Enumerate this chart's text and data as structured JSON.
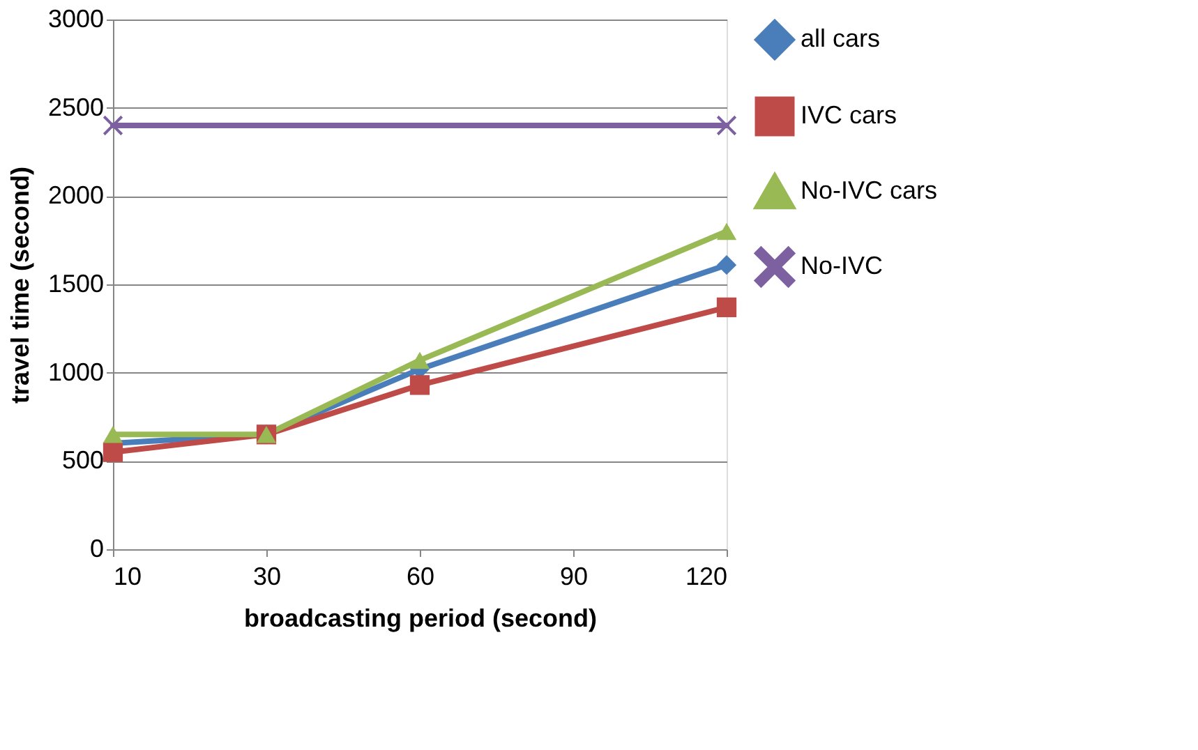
{
  "chart_data": {
    "type": "line",
    "xlabel": "broadcasting period (second)",
    "ylabel": "travel time (second)",
    "categories": [
      "10",
      "30",
      "60",
      "90",
      "120"
    ],
    "series": [
      {
        "name": "all cars",
        "color": "#4a7ebb",
        "marker": "diamond",
        "values": [
          600,
          650,
          1020,
          null,
          1610
        ]
      },
      {
        "name": "IVC cars",
        "color": "#be4b48",
        "marker": "square",
        "values": [
          550,
          650,
          930,
          null,
          1370
        ]
      },
      {
        "name": "No-IVC cars",
        "color": "#98b954",
        "marker": "triangle",
        "values": [
          650,
          650,
          1070,
          null,
          1800
        ]
      },
      {
        "name": "No-IVC",
        "color": "#7d60a0",
        "marker": "cross",
        "values": [
          2400,
          null,
          null,
          null,
          2400
        ]
      }
    ],
    "ylim": [
      0,
      3000
    ],
    "yticks": [
      0,
      500,
      1000,
      1500,
      2000,
      2500,
      3000
    ],
    "grid": "y",
    "legend": "right"
  }
}
